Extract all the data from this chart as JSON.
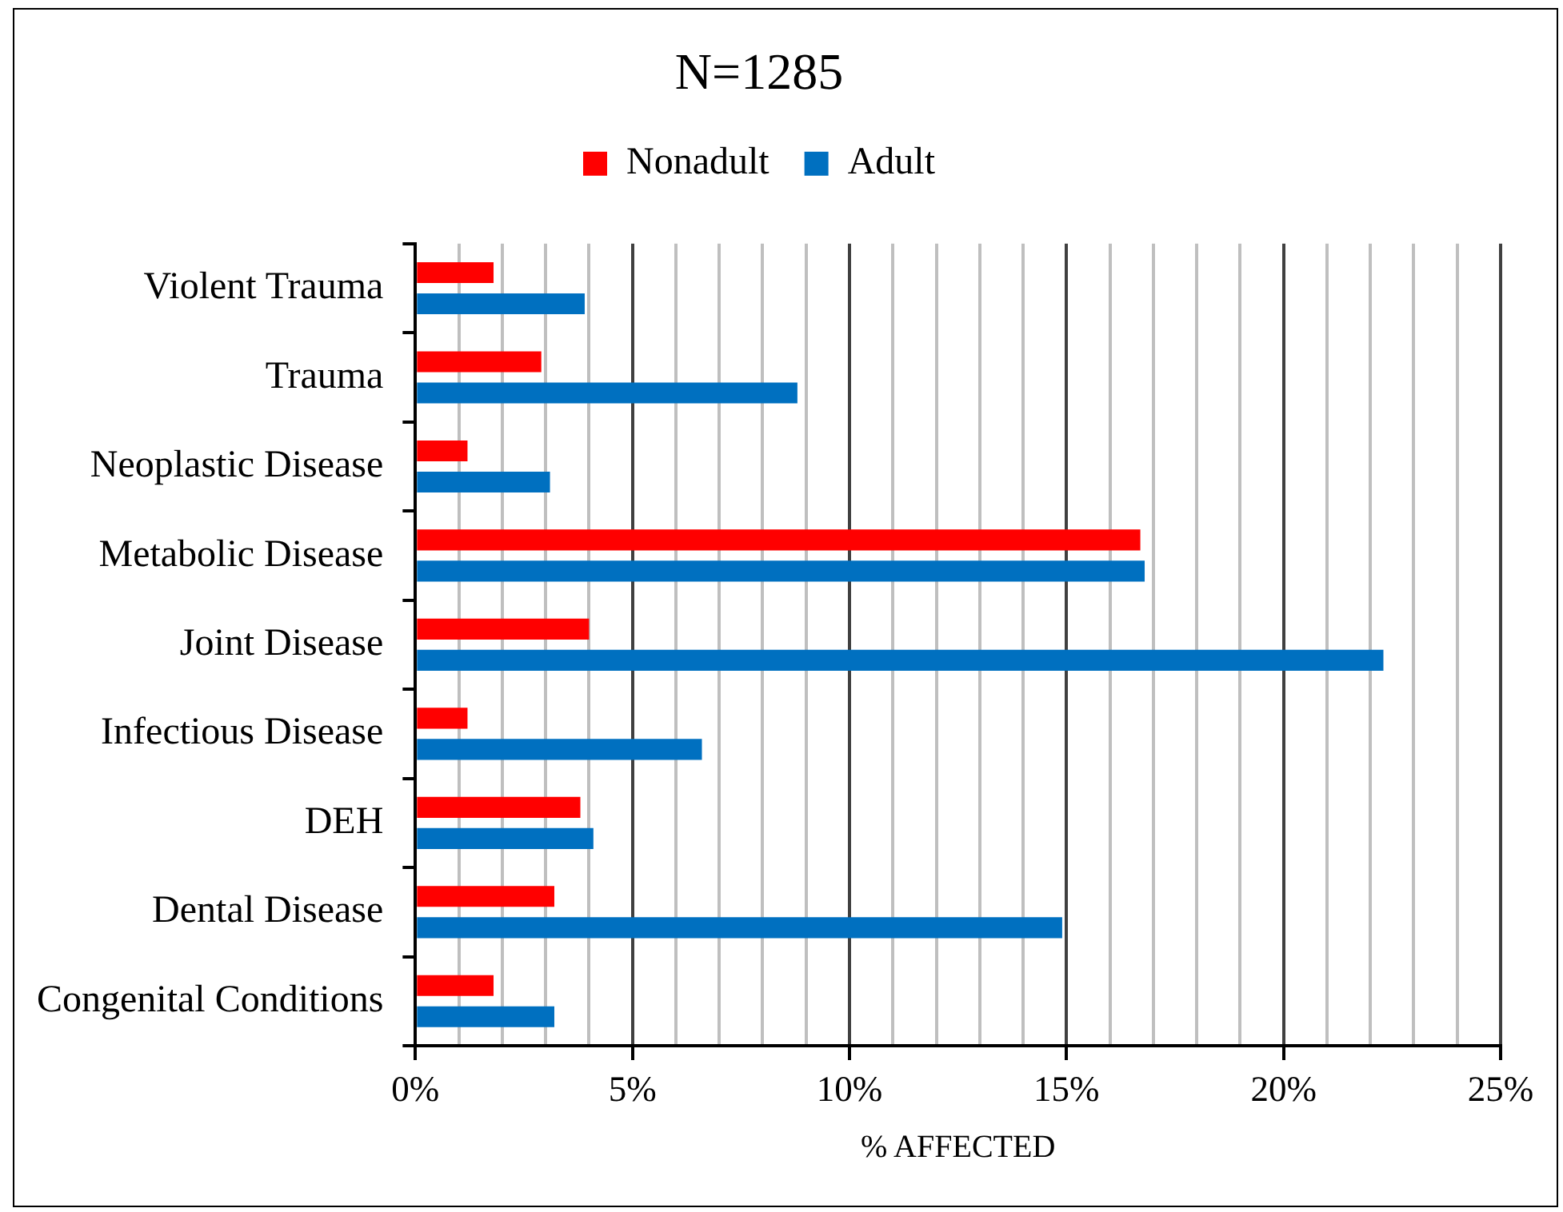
{
  "chart_data": {
    "type": "bar",
    "orientation": "horizontal",
    "title": "N=1285",
    "xlabel": "% AFFECTED",
    "categories": [
      "Violent Trauma",
      "Trauma",
      "Neoplastic Disease",
      "Metabolic Disease",
      "Joint Disease",
      "Infectious Disease",
      "DEH",
      "Dental Disease",
      "Congenital Conditions"
    ],
    "series": [
      {
        "name": "Nonadult",
        "color": "#ff0000",
        "values": [
          1.8,
          2.9,
          1.2,
          16.7,
          4.0,
          1.2,
          3.8,
          3.2,
          1.8
        ]
      },
      {
        "name": "Adult",
        "color": "#0070c0",
        "values": [
          3.9,
          8.8,
          3.1,
          16.8,
          22.3,
          6.6,
          4.1,
          14.9,
          3.2
        ]
      }
    ],
    "xlim": [
      0,
      25
    ],
    "xticks": [
      {
        "value": 0,
        "label": "0%"
      },
      {
        "value": 1,
        "label": null
      },
      {
        "value": 2,
        "label": null
      },
      {
        "value": 3,
        "label": null
      },
      {
        "value": 4,
        "label": null
      },
      {
        "value": 5,
        "label": "5%"
      },
      {
        "value": 6,
        "label": null
      },
      {
        "value": 7,
        "label": null
      },
      {
        "value": 8,
        "label": null
      },
      {
        "value": 9,
        "label": null
      },
      {
        "value": 10,
        "label": "10%"
      },
      {
        "value": 11,
        "label": null
      },
      {
        "value": 12,
        "label": null
      },
      {
        "value": 13,
        "label": null
      },
      {
        "value": 14,
        "label": null
      },
      {
        "value": 15,
        "label": "15%"
      },
      {
        "value": 16,
        "label": null
      },
      {
        "value": 17,
        "label": null
      },
      {
        "value": 18,
        "label": null
      },
      {
        "value": 19,
        "label": null
      },
      {
        "value": 20,
        "label": "20%"
      },
      {
        "value": 21,
        "label": null
      },
      {
        "value": 22,
        "label": null
      },
      {
        "value": 23,
        "label": null
      },
      {
        "value": 24,
        "label": null
      },
      {
        "value": 25,
        "label": "25%"
      }
    ],
    "grid": "x",
    "legend": "top"
  }
}
